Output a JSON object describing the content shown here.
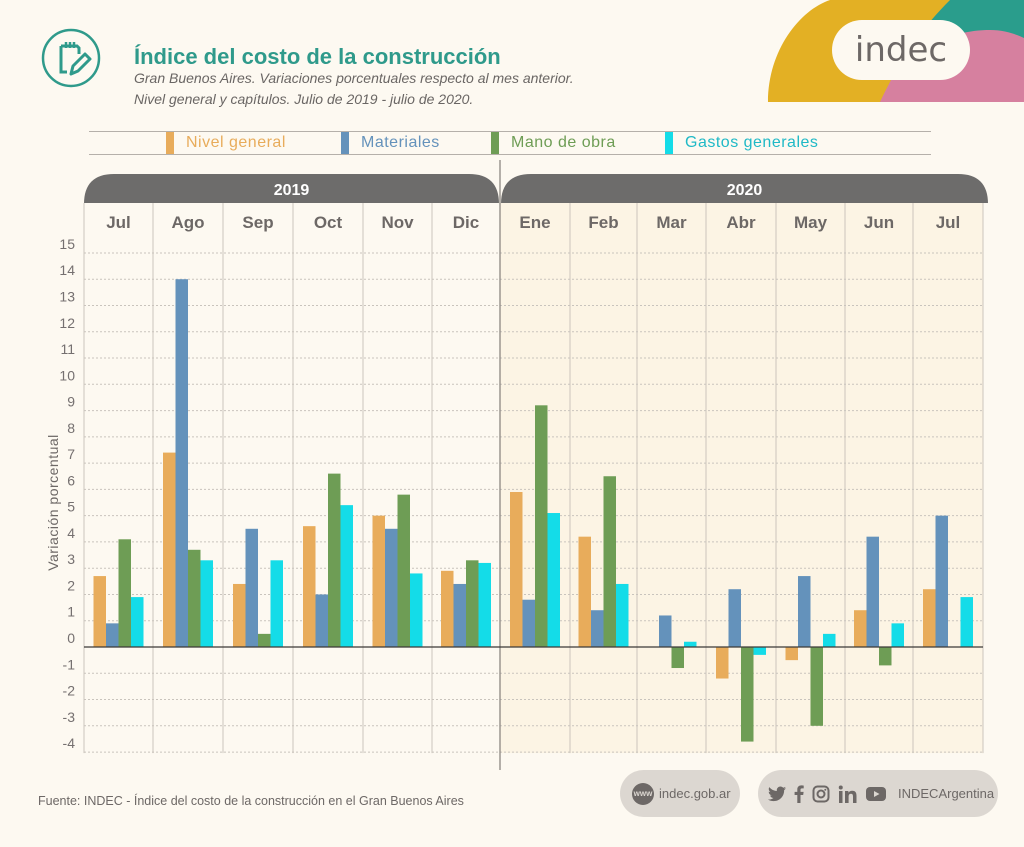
{
  "header": {
    "title": "Índice del costo de la construcción",
    "subtitle_line1": "Gran Buenos Aires. Variaciones porcentuales respecto al mes anterior.",
    "subtitle_line2": "Nivel general y capítulos. Julio de 2019 - julio de 2020.",
    "logo_text": "indec",
    "icon": "notepad-pencil-icon"
  },
  "colors": {
    "title": "#2f9a8b",
    "nivel_general": "#e8ac5b",
    "materiales": "#6492bb",
    "mano_de_obra": "#6e9d55",
    "gastos_generales": "#14dce8",
    "year_band": "#6d6c6b",
    "shade_2020": "#fcf4e4",
    "logo_yellow": "#e3b024",
    "logo_teal": "#2a9d8c",
    "logo_pink": "#d6809f"
  },
  "chart_data": {
    "type": "bar",
    "title": "Índice del costo de la construcción",
    "subtitle": "Gran Buenos Aires. Variaciones porcentuales respecto al mes anterior. Nivel general y capítulos. Julio de 2019 - julio de 2020.",
    "xlabel": "",
    "ylabel": "Variación porcentual",
    "ylim": [
      -4,
      15
    ],
    "yticks": [
      15,
      14,
      13,
      12,
      11,
      10,
      9,
      8,
      7,
      6,
      5,
      4,
      3,
      2,
      1,
      0,
      -1,
      -2,
      -3,
      -4
    ],
    "grid": true,
    "legend_position": "top",
    "years": [
      {
        "label": "2019",
        "months": 6
      },
      {
        "label": "2020",
        "months": 7
      }
    ],
    "categories": [
      "Jul",
      "Ago",
      "Sep",
      "Oct",
      "Nov",
      "Dic",
      "Ene",
      "Feb",
      "Mar",
      "Abr",
      "May",
      "Jun",
      "Jul"
    ],
    "series": [
      {
        "name": "Nivel general",
        "color": "#e8ac5b",
        "values": [
          2.7,
          7.4,
          2.4,
          4.6,
          5.0,
          2.9,
          5.9,
          4.2,
          0.0,
          -1.2,
          -0.5,
          1.4,
          2.2
        ]
      },
      {
        "name": "Materiales",
        "color": "#6492bb",
        "values": [
          0.9,
          14.0,
          4.5,
          2.0,
          4.5,
          2.4,
          1.8,
          1.4,
          1.2,
          2.2,
          2.7,
          4.2,
          5.0
        ]
      },
      {
        "name": "Mano de obra",
        "color": "#6e9d55",
        "values": [
          4.1,
          3.7,
          0.5,
          6.6,
          5.8,
          3.3,
          9.2,
          6.5,
          -0.8,
          -3.6,
          -3.0,
          -0.7,
          0.0
        ]
      },
      {
        "name": "Gastos generales",
        "color": "#14dce8",
        "values": [
          1.9,
          3.3,
          3.3,
          5.4,
          2.8,
          3.2,
          5.1,
          2.4,
          0.2,
          -0.3,
          0.5,
          0.9,
          1.9
        ]
      }
    ]
  },
  "footer": {
    "source": "Fuente: INDEC - Índice del costo de la construcción en el Gran Buenos Aires",
    "www_badge": "www",
    "website": "indec.gob.ar",
    "social_handle": "INDECArgentina",
    "social_icons": [
      "twitter-icon",
      "facebook-icon",
      "instagram-icon",
      "linkedin-icon",
      "youtube-icon"
    ]
  }
}
